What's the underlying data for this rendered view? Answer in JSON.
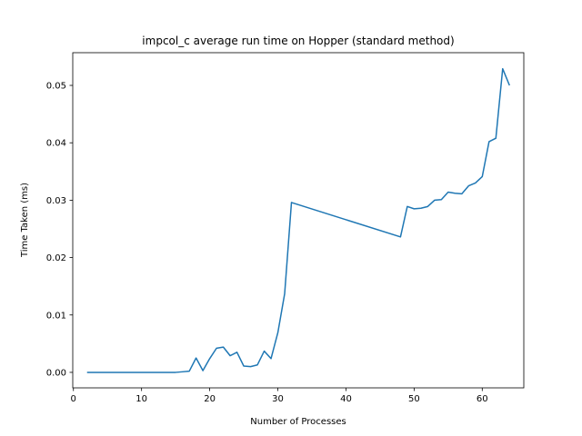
{
  "chart_data": {
    "type": "line",
    "title": "impcol_c average run time on Hopper (standard method)",
    "xlabel": "Number of Processes",
    "ylabel": "Time Taken (ms)",
    "xlim": [
      -0.1,
      66.1
    ],
    "ylim": [
      -0.0027,
      0.0557
    ],
    "x_ticks": [
      0,
      10,
      20,
      30,
      40,
      50,
      60
    ],
    "x_tick_labels": [
      "0",
      "10",
      "20",
      "30",
      "40",
      "50",
      "60"
    ],
    "y_ticks": [
      0.0,
      0.01,
      0.02,
      0.03,
      0.04,
      0.05
    ],
    "y_tick_labels": [
      "0.00",
      "0.01",
      "0.02",
      "0.03",
      "0.04",
      "0.05"
    ],
    "grid": false,
    "series": [
      {
        "color": "#1f77b4",
        "x": [
          2,
          3,
          4,
          5,
          6,
          7,
          8,
          9,
          10,
          11,
          12,
          13,
          14,
          15,
          16,
          17,
          18,
          19,
          20,
          21,
          22,
          23,
          24,
          25,
          26,
          27,
          28,
          29,
          30,
          31,
          32,
          48,
          49,
          50,
          51,
          52,
          53,
          54,
          55,
          56,
          57,
          58,
          59,
          60,
          61,
          62,
          63,
          64
        ],
        "y": [
          0.0,
          0.0,
          0.0,
          0.0,
          0.0,
          0.0,
          0.0,
          0.0,
          0.0,
          0.0,
          0.0,
          0.0,
          0.0,
          0.0,
          0.0001,
          0.0002,
          0.0025,
          0.0003,
          0.0024,
          0.0042,
          0.0044,
          0.0029,
          0.0035,
          0.0011,
          0.001,
          0.0013,
          0.0037,
          0.0024,
          0.0069,
          0.0137,
          0.0296,
          0.0236,
          0.0289,
          0.0285,
          0.0286,
          0.0289,
          0.03,
          0.0301,
          0.0314,
          0.0312,
          0.0311,
          0.0325,
          0.033,
          0.0341,
          0.0402,
          0.0408,
          0.0529,
          0.05
        ]
      }
    ]
  }
}
